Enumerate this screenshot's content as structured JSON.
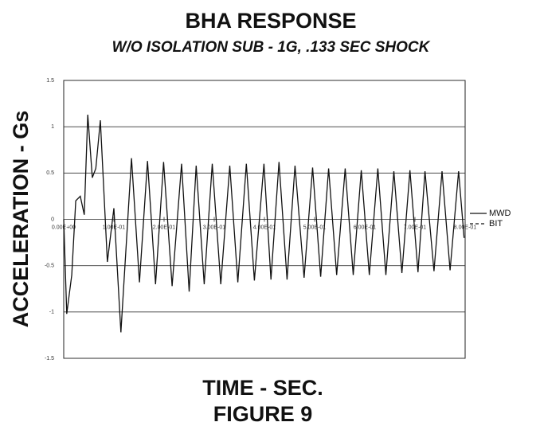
{
  "chart_data": {
    "type": "line",
    "title": "BHA RESPONSE",
    "subtitle": "W/O ISOLATION SUB - 1G, .133 SEC SHOCK",
    "x_label": "TIME - SEC.",
    "y_label": "ACCELERATION - Gs",
    "caption": "FIGURE 9",
    "x": [
      0,
      0.006,
      0.016,
      0.024,
      0.033,
      0.041,
      0.048,
      0.057,
      0.064,
      0.073,
      0.087,
      0.1,
      0.114,
      0.135,
      0.151,
      0.167,
      0.183,
      0.199,
      0.216,
      0.235,
      0.25,
      0.264,
      0.28,
      0.296,
      0.313,
      0.331,
      0.347,
      0.364,
      0.38,
      0.399,
      0.413,
      0.429,
      0.445,
      0.461,
      0.479,
      0.496,
      0.512,
      0.528,
      0.544,
      0.561,
      0.577,
      0.593,
      0.609,
      0.626,
      0.642,
      0.658,
      0.674,
      0.69,
      0.706,
      0.72,
      0.738,
      0.754,
      0.77,
      0.787,
      0.798
    ],
    "series": [
      {
        "name": "MWD",
        "color": "#111111",
        "dash": "solid",
        "values": [
          0,
          -1.02,
          -0.6,
          0.2,
          0.25,
          0.05,
          1.13,
          0.45,
          0.55,
          1.07,
          -0.46,
          0.12,
          -1.22,
          0.66,
          -0.68,
          0.63,
          -0.7,
          0.62,
          -0.72,
          0.6,
          -0.78,
          0.58,
          -0.7,
          0.6,
          -0.7,
          0.58,
          -0.68,
          0.6,
          -0.66,
          0.6,
          -0.65,
          0.62,
          -0.65,
          0.58,
          -0.63,
          0.56,
          -0.62,
          0.55,
          -0.6,
          0.55,
          -0.6,
          0.53,
          -0.6,
          0.55,
          -0.6,
          0.52,
          -0.58,
          0.53,
          -0.57,
          0.52,
          -0.56,
          0.52,
          -0.55,
          0.52,
          -0.2
        ]
      }
    ],
    "legend": [
      {
        "name": "MWD",
        "dash": "solid"
      },
      {
        "name": "BIT",
        "dash": "dashed"
      }
    ],
    "legend_position": "right",
    "xlim": [
      0,
      0.8
    ],
    "xticks": [
      {
        "value": 0,
        "label": "0.00E+00"
      },
      {
        "value": 0.1,
        "label": "1.00E-01"
      },
      {
        "value": 0.2,
        "label": "2.00E-01"
      },
      {
        "value": 0.3,
        "label": "3.00E-01"
      },
      {
        "value": 0.4,
        "label": "4.00E-01"
      },
      {
        "value": 0.5,
        "label": "5.00E-01"
      },
      {
        "value": 0.6,
        "label": "6.00E-01"
      },
      {
        "value": 0.7,
        "label": "7.00E-01"
      },
      {
        "value": 0.8,
        "label": "8.00E-01"
      }
    ],
    "ylim": [
      -1.5,
      1.5
    ],
    "yticks": [
      1.5,
      1,
      0.5,
      0,
      -0.5,
      -1,
      -1.5
    ],
    "grid": true
  }
}
